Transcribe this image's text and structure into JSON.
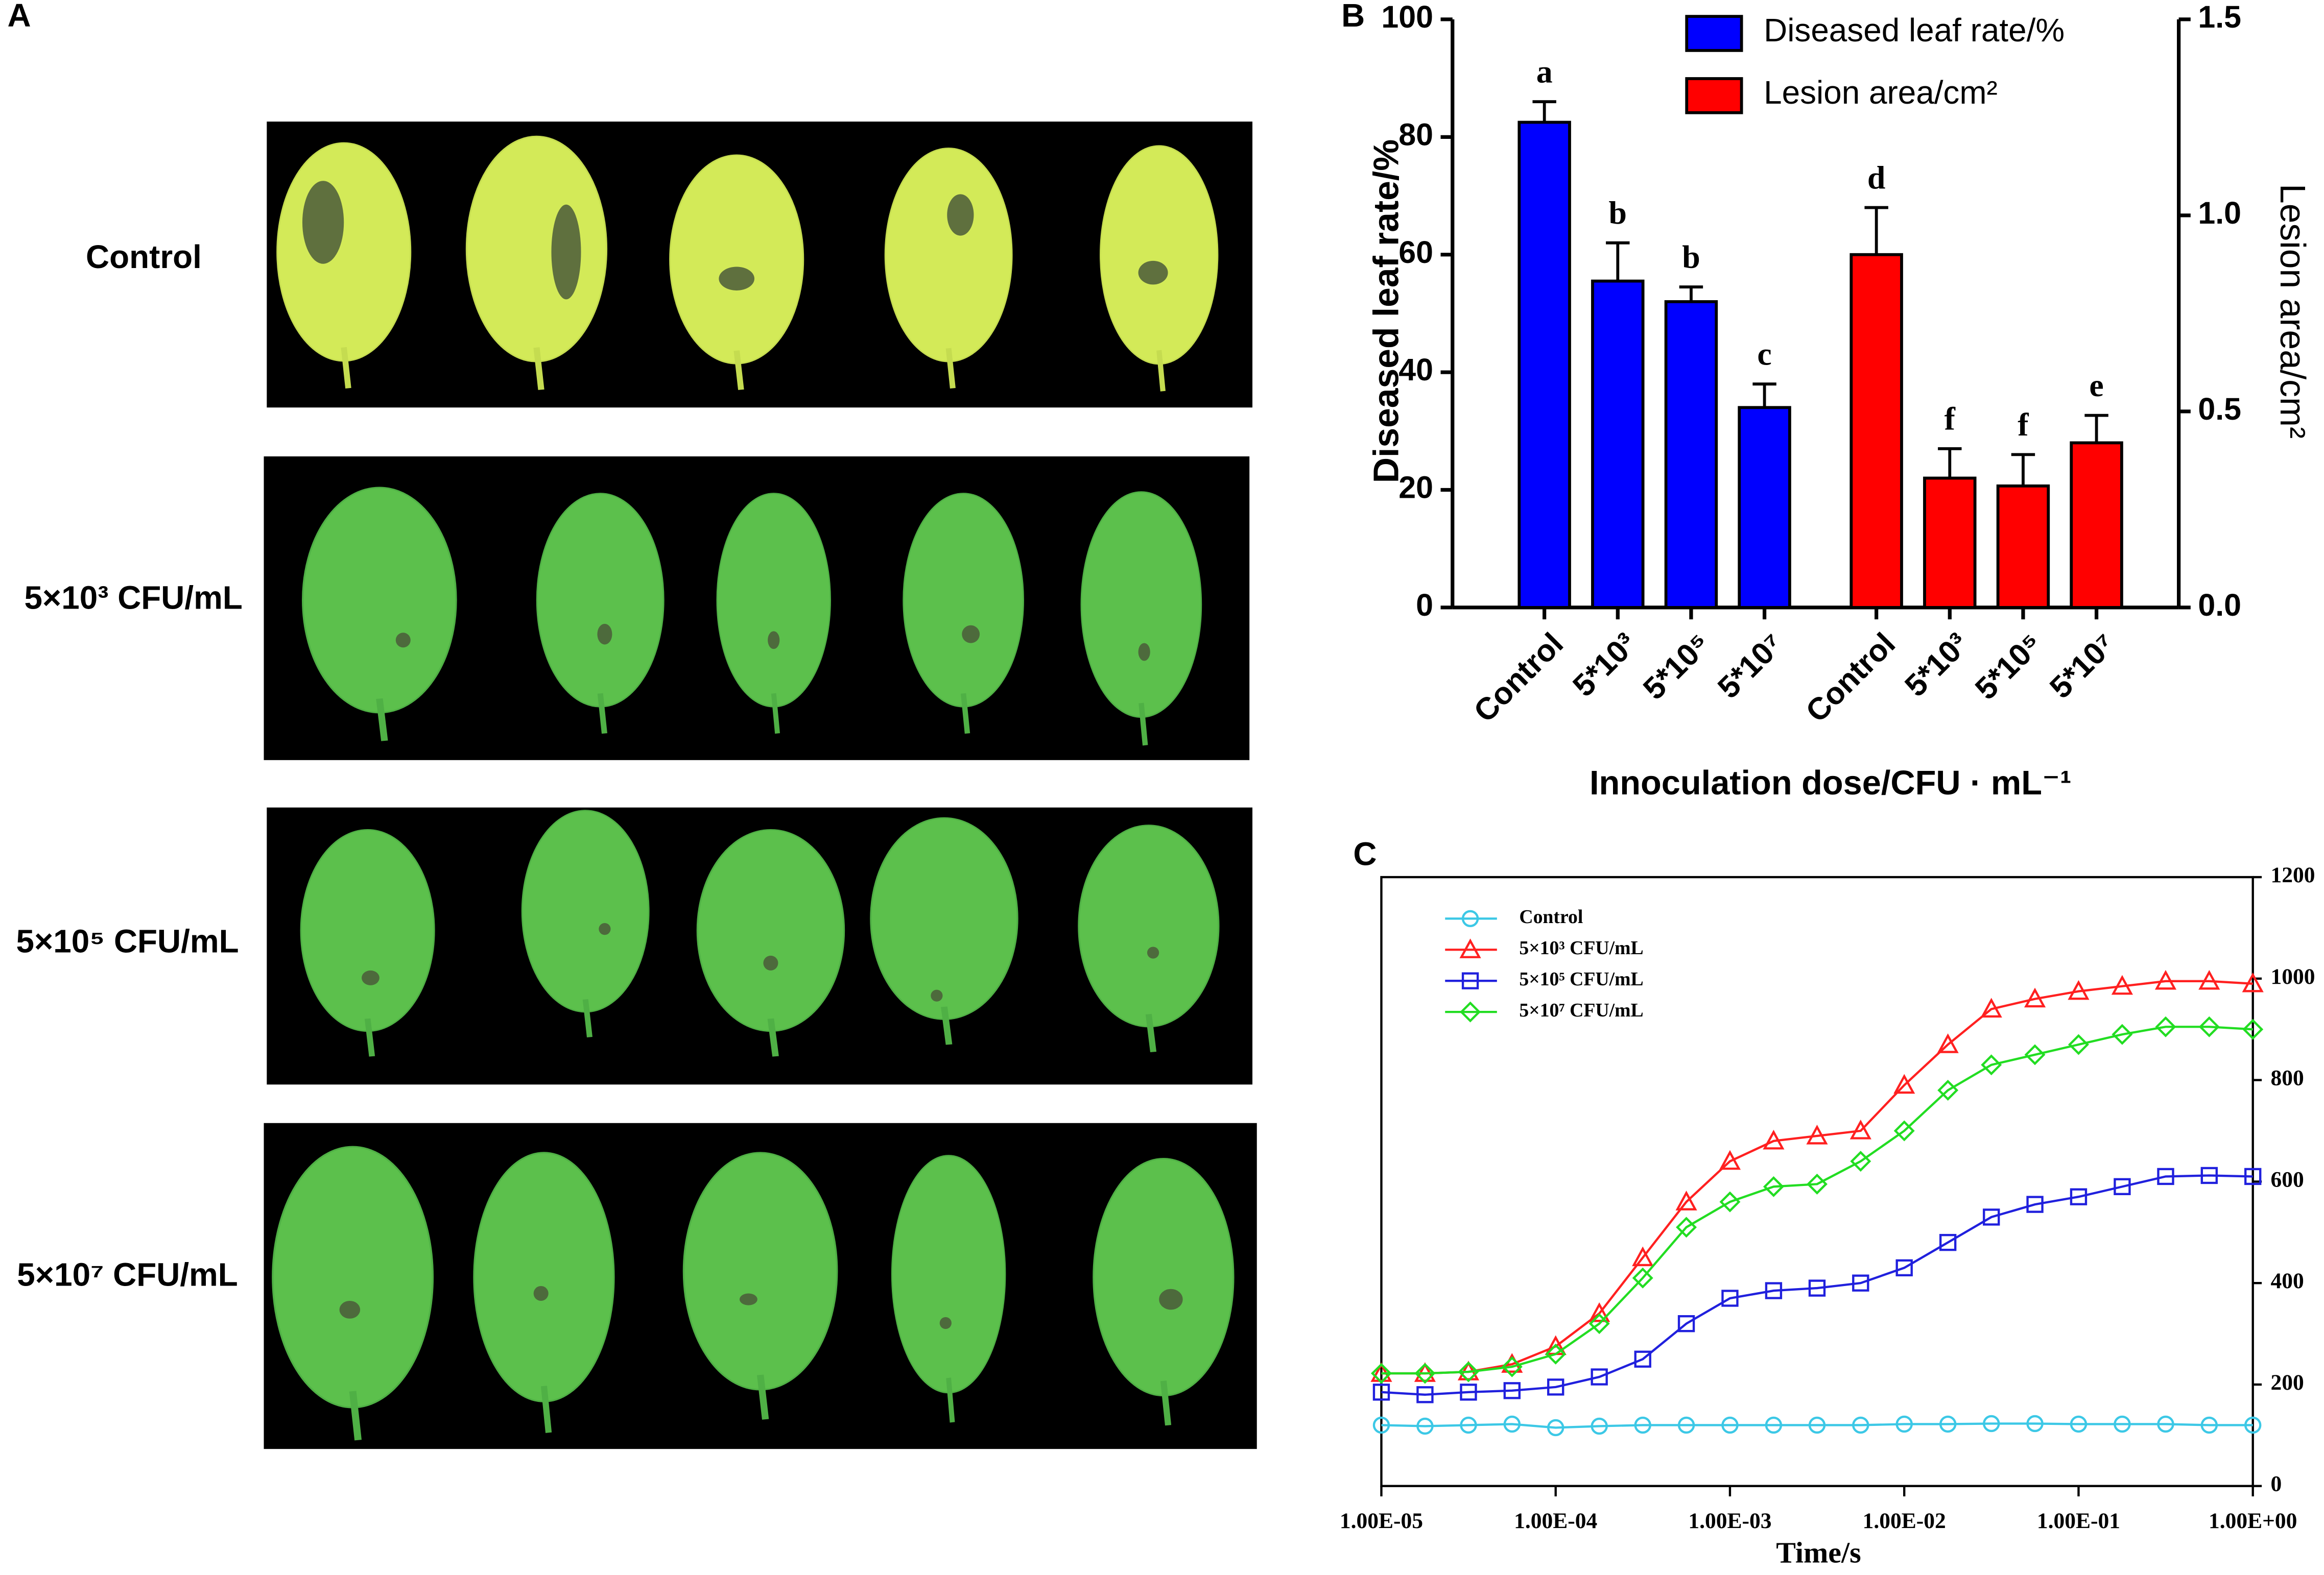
{
  "panel_a": {
    "label": "A",
    "rows": [
      "Control",
      "5×10³ CFU/mL",
      "5×10⁵ CFU/mL",
      "5×10⁷ CFU/mL"
    ]
  },
  "chart_data": [
    {
      "type": "bar",
      "label": "B",
      "xlabel": "Innoculation dose/CFU · mL⁻¹",
      "ylabel": "Diseased leaf rate/%",
      "y2label": "Lesion area/cm²",
      "categories": [
        "Control",
        "5*10³",
        "5*10⁵",
        "5*10⁷",
        "Control",
        "5*10³",
        "5*10⁵",
        "5*10⁷"
      ],
      "series": [
        {
          "name": "Diseased leaf rate/%",
          "color": "#0000ff",
          "values": [
            82.5,
            55.5,
            52,
            34,
            null,
            null,
            null,
            null
          ],
          "errors": [
            3.5,
            6.5,
            2.5,
            4,
            null,
            null,
            null,
            null
          ],
          "letters": [
            "a",
            "b",
            "b",
            "c",
            null,
            null,
            null,
            null
          ]
        },
        {
          "name": "Lesion area/cm²",
          "color": "#ff0000",
          "axis": "y2",
          "values": [
            null,
            null,
            null,
            null,
            0.9,
            0.33,
            0.31,
            0.42
          ],
          "errors": [
            null,
            null,
            null,
            null,
            0.12,
            0.075,
            0.08,
            0.07
          ],
          "letters": [
            null,
            null,
            null,
            null,
            "d",
            "f",
            "f",
            "e"
          ]
        }
      ],
      "ylim": [
        0,
        100
      ],
      "yticks": [
        0,
        20,
        40,
        60,
        80,
        100
      ],
      "y2lim": [
        0,
        1.5
      ],
      "y2ticks": [
        {
          "value": 0,
          "label": "0.0"
        },
        {
          "value": 0.5,
          "label": "0.5"
        },
        {
          "value": 1,
          "label": "1.0"
        },
        {
          "value": 1.5,
          "label": "1.5"
        }
      ]
    },
    {
      "type": "line",
      "label": "C",
      "xlabel": "Time/s",
      "xscale": "log",
      "x": [
        1e-05,
        1.78e-05,
        3.16e-05,
        5.62e-05,
        0.0001,
        0.000178,
        0.000316,
        0.000562,
        0.001,
        0.00178,
        0.00316,
        0.00562,
        0.01,
        0.0178,
        0.0316,
        0.0562,
        0.1,
        0.178,
        0.316,
        0.562,
        1
      ],
      "series": [
        {
          "name": "Control",
          "color": "#3cc8e6",
          "marker": "circle",
          "values": [
            120,
            118,
            120,
            122,
            115,
            118,
            120,
            120,
            120,
            120,
            120,
            120,
            122,
            122,
            123,
            123,
            122,
            122,
            122,
            120,
            120
          ]
        },
        {
          "name": "5×10³ CFU/mL",
          "color": "#ff2020",
          "marker": "triangle",
          "values": [
            222,
            222,
            225,
            240,
            275,
            340,
            450,
            560,
            640,
            680,
            690,
            700,
            790,
            870,
            940,
            960,
            975,
            985,
            995,
            995,
            990
          ]
        },
        {
          "name": "5×10⁵ CFU/mL",
          "color": "#2020dd",
          "marker": "square",
          "values": [
            185,
            180,
            185,
            188,
            195,
            215,
            250,
            320,
            370,
            385,
            390,
            400,
            430,
            480,
            530,
            555,
            570,
            590,
            610,
            612,
            610
          ]
        },
        {
          "name": "5×10⁷ CFU/mL",
          "color": "#22dd22",
          "marker": "diamond",
          "values": [
            222,
            222,
            225,
            235,
            260,
            320,
            410,
            510,
            560,
            590,
            595,
            640,
            700,
            780,
            830,
            850,
            870,
            890,
            905,
            905,
            900
          ]
        }
      ],
      "xlim": [
        1e-05,
        1
      ],
      "xticks": [
        {
          "value": 1e-05,
          "label": "1.00E-05"
        },
        {
          "value": 0.0001,
          "label": "1.00E-04"
        },
        {
          "value": 0.001,
          "label": "1.00E-03"
        },
        {
          "value": 0.01,
          "label": "1.00E-02"
        },
        {
          "value": 0.1,
          "label": "1.00E-01"
        },
        {
          "value": 1,
          "label": "1.00E+00"
        }
      ],
      "ylim": [
        0,
        1200
      ],
      "yticks": [
        0,
        200,
        400,
        600,
        800,
        1000,
        1200
      ]
    }
  ]
}
